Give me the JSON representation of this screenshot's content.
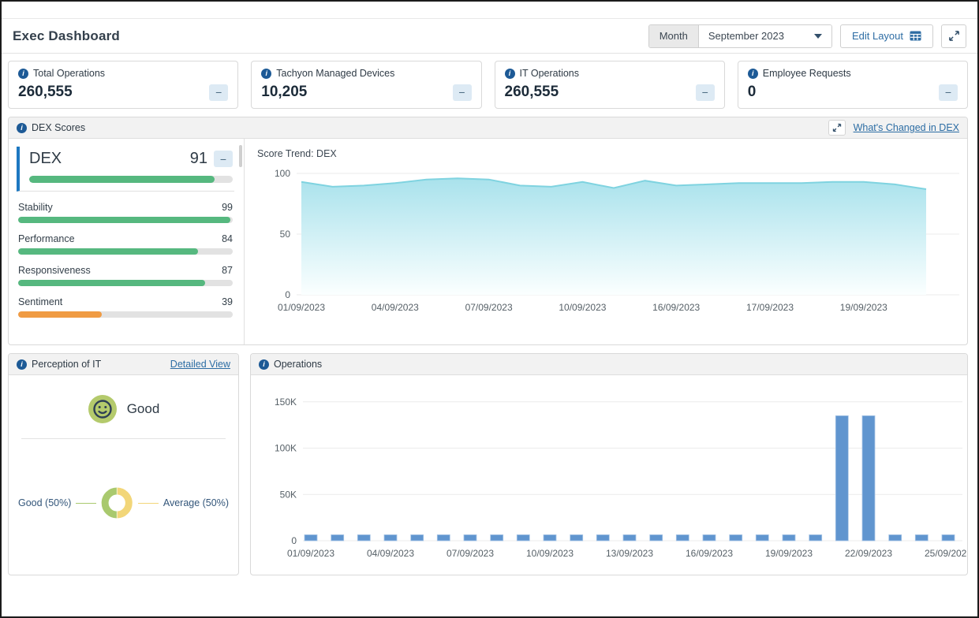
{
  "header": {
    "title": "Exec Dashboard",
    "period_label": "Month",
    "period_value": "September 2023",
    "edit_layout_label": "Edit Layout"
  },
  "kpis": [
    {
      "label": "Total Operations",
      "value": "260,555"
    },
    {
      "label": "Tachyon Managed Devices",
      "value": "10,205"
    },
    {
      "label": "IT Operations",
      "value": "260,555"
    },
    {
      "label": "Employee Requests",
      "value": "0"
    }
  ],
  "minus_glyph": "−",
  "info_glyph": "i",
  "dex": {
    "panel_title": "DEX Scores",
    "whats_changed_link": "What's Changed in DEX",
    "trend_title": "Score Trend: DEX",
    "main": {
      "label": "DEX",
      "value": 91,
      "color": "#56b87f"
    },
    "subscores": [
      {
        "label": "Stability",
        "value": 99,
        "color": "#56b87f"
      },
      {
        "label": "Performance",
        "value": 84,
        "color": "#56b87f"
      },
      {
        "label": "Responsiveness",
        "value": 87,
        "color": "#56b87f"
      },
      {
        "label": "Sentiment",
        "value": 39,
        "color": "#f09b43"
      }
    ]
  },
  "perception": {
    "panel_title": "Perception of IT",
    "detailed_view_link": "Detailed View",
    "mood_label": "Good",
    "label_left": "Good (50%)",
    "label_right": "Average (50%)"
  },
  "operations_panel": {
    "panel_title": "Operations"
  },
  "chart_data": [
    {
      "id": "dex-trend",
      "type": "area",
      "title": "Score Trend: DEX",
      "values": [
        93,
        89,
        90,
        92,
        95,
        96,
        95,
        90,
        89,
        93,
        88,
        94,
        90,
        91,
        92,
        92,
        92,
        93,
        93,
        91,
        87
      ],
      "x_tick_labels": [
        "01/09/2023",
        "04/09/2023",
        "07/09/2023",
        "10/09/2023",
        "16/09/2023",
        "17/09/2023",
        "19/09/2023"
      ],
      "tick_every": 3,
      "y_ticks": [
        0,
        50,
        100
      ],
      "ylim": [
        0,
        100
      ],
      "grid": true,
      "stroke_color": "#7fd3e0",
      "fill_top": "#a9e2ec",
      "fill_bottom": "#fbffff"
    },
    {
      "id": "perception-donut",
      "type": "pie",
      "slices": [
        {
          "label": "Good (50%)",
          "pct": 50,
          "color": "#a9c96e"
        },
        {
          "label": "Average (50%)",
          "pct": 50,
          "color": "#f2d679"
        }
      ],
      "legend_position": "sides"
    },
    {
      "id": "operations-bars",
      "type": "bar",
      "categories": [
        "01/09/2023",
        "02/09/2023",
        "03/09/2023",
        "04/09/2023",
        "05/09/2023",
        "06/09/2023",
        "07/09/2023",
        "08/09/2023",
        "09/09/2023",
        "10/09/2023",
        "11/09/2023",
        "12/09/2023",
        "13/09/2023",
        "14/09/2023",
        "15/09/2023",
        "16/09/2023",
        "17/09/2023",
        "18/09/2023",
        "19/09/2023",
        "20/09/2023",
        "21/09/2023",
        "22/09/2023",
        "23/09/2023",
        "24/09/2023",
        "25/09/2023"
      ],
      "values": [
        6500,
        6500,
        6500,
        6500,
        6500,
        6500,
        6500,
        6500,
        6500,
        6500,
        6500,
        6500,
        6500,
        6500,
        6500,
        6500,
        6500,
        6500,
        6500,
        6500,
        135000,
        135000,
        6500,
        6500,
        6500
      ],
      "x_tick_labels": [
        "01/09/2023",
        "04/09/2023",
        "07/09/2023",
        "10/09/2023",
        "13/09/2023",
        "16/09/2023",
        "19/09/2023",
        "22/09/2023",
        "25/09/2023"
      ],
      "tick_every": 3,
      "y_ticks": [
        0,
        50000,
        100000,
        150000
      ],
      "y_tick_labels": [
        "0",
        "50K",
        "100K",
        "150K"
      ],
      "ylim": [
        0,
        160000
      ],
      "grid": true,
      "bar_color": "#6095cf"
    }
  ],
  "colors": {
    "accent_blue": "#2e6da4",
    "info_badge": "#1d5a96",
    "axis_text": "#555f66",
    "gridline": "#ebebeb",
    "smiley_bg": "#b4ca6c",
    "smiley_face": "#2e3f54"
  }
}
